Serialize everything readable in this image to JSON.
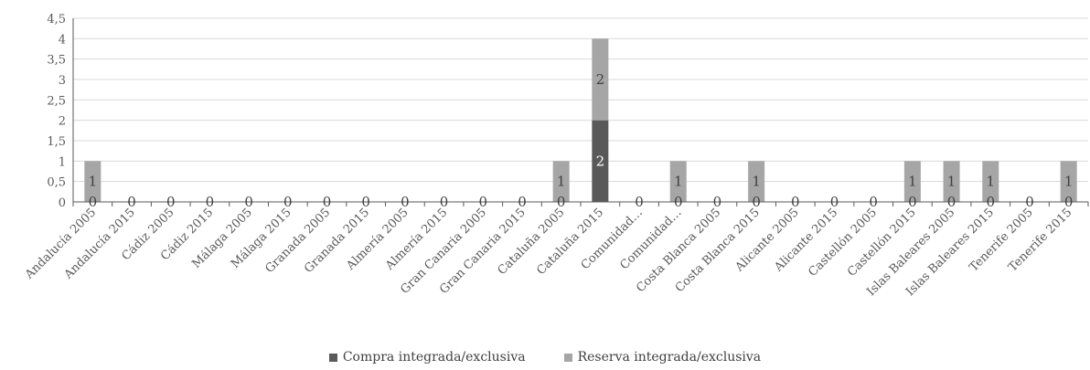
{
  "chart_data": {
    "type": "bar",
    "stacked": true,
    "title": "",
    "xlabel": "",
    "ylabel": "",
    "ylim": [
      0,
      4.5
    ],
    "yticks": [
      "0",
      "0,5",
      "1",
      "1,5",
      "2",
      "2,5",
      "3",
      "3,5",
      "4",
      "4,5"
    ],
    "grid": true,
    "legend_position": "bottom",
    "categories": [
      "Andalucía 2005",
      "Andalucía 2015",
      "Cádiz 2005",
      "Cádiz 2015",
      "Málaga 2005",
      "Málaga 2015",
      "Granada 2005",
      "Granada 2015",
      "Almería 2005",
      "Almería 2015",
      "Gran Canaria 2005",
      "Gran Canaria 2015",
      "Cataluña 2005",
      "Cataluña 2015",
      "Comunidad…",
      "Comunidad…",
      "Costa Blanca 2005",
      "Costa Blanca 2015",
      "Alicante 2005",
      "Alicante 2015",
      "Castellón 2005",
      "Castellón 2015",
      "Islas Baleares 2005",
      "Islas Baleares 2015",
      "Tenerife 2005",
      "Tenerife 2015"
    ],
    "series": [
      {
        "name": "Compra integrada/exclusiva",
        "color": "#595959",
        "values": [
          0,
          0,
          0,
          0,
          0,
          0,
          0,
          0,
          0,
          0,
          0,
          0,
          0,
          2,
          0,
          0,
          0,
          0,
          0,
          0,
          0,
          0,
          0,
          0,
          0,
          0
        ]
      },
      {
        "name": "Reserva integrada/exclusiva",
        "color": "#a6a6a6",
        "values": [
          1,
          null,
          null,
          null,
          null,
          null,
          null,
          null,
          null,
          null,
          null,
          null,
          1,
          2,
          null,
          1,
          null,
          1,
          null,
          null,
          null,
          1,
          1,
          1,
          null,
          1
        ]
      }
    ]
  }
}
